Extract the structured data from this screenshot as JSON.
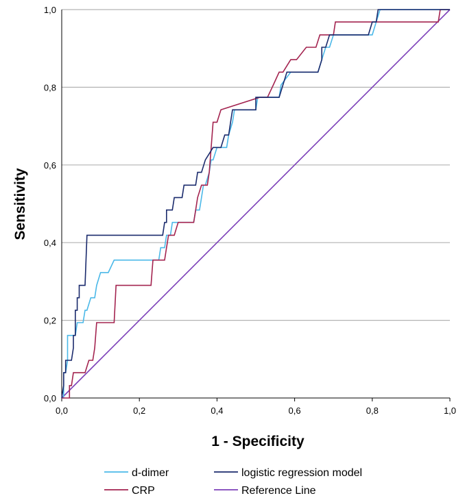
{
  "chart_data": {
    "type": "line",
    "title": "",
    "xlabel": "1 - Specificity",
    "ylabel": "Sensitivity",
    "xlim": [
      0,
      1
    ],
    "ylim": [
      0,
      1
    ],
    "x_ticks": [
      "0,0",
      "0,2",
      "0,4",
      "0,6",
      "0,8",
      "1,0"
    ],
    "y_ticks": [
      "0,0",
      "0,2",
      "0,4",
      "0,6",
      "0,8",
      "1,0"
    ],
    "grid": "horizontal",
    "legend_position": "bottom",
    "series": [
      {
        "name": "d-dimer",
        "color": "#4ab8e8",
        "points": [
          [
            0,
            0
          ],
          [
            0.005,
            0
          ],
          [
            0.005,
            0.065
          ],
          [
            0.01,
            0.065
          ],
          [
            0.015,
            0.097
          ],
          [
            0.015,
            0.161
          ],
          [
            0.025,
            0.161
          ],
          [
            0.03,
            0.161
          ],
          [
            0.035,
            0.161
          ],
          [
            0.04,
            0.194
          ],
          [
            0.055,
            0.194
          ],
          [
            0.06,
            0.226
          ],
          [
            0.065,
            0.226
          ],
          [
            0.075,
            0.258
          ],
          [
            0.085,
            0.258
          ],
          [
            0.09,
            0.29
          ],
          [
            0.1,
            0.323
          ],
          [
            0.12,
            0.323
          ],
          [
            0.135,
            0.355
          ],
          [
            0.25,
            0.355
          ],
          [
            0.255,
            0.387
          ],
          [
            0.265,
            0.387
          ],
          [
            0.27,
            0.419
          ],
          [
            0.28,
            0.419
          ],
          [
            0.285,
            0.452
          ],
          [
            0.34,
            0.452
          ],
          [
            0.345,
            0.484
          ],
          [
            0.355,
            0.484
          ],
          [
            0.36,
            0.516
          ],
          [
            0.365,
            0.548
          ],
          [
            0.37,
            0.548
          ],
          [
            0.38,
            0.581
          ],
          [
            0.385,
            0.613
          ],
          [
            0.39,
            0.613
          ],
          [
            0.4,
            0.645
          ],
          [
            0.425,
            0.645
          ],
          [
            0.43,
            0.677
          ],
          [
            0.44,
            0.71
          ],
          [
            0.445,
            0.742
          ],
          [
            0.5,
            0.742
          ],
          [
            0.505,
            0.774
          ],
          [
            0.56,
            0.774
          ],
          [
            0.565,
            0.806
          ],
          [
            0.59,
            0.839
          ],
          [
            0.66,
            0.839
          ],
          [
            0.67,
            0.871
          ],
          [
            0.68,
            0.903
          ],
          [
            0.69,
            0.903
          ],
          [
            0.7,
            0.935
          ],
          [
            0.8,
            0.935
          ],
          [
            0.81,
            0.968
          ],
          [
            0.82,
            1
          ],
          [
            1,
            1
          ]
        ]
      },
      {
        "name": "CRP",
        "color": "#a3234f",
        "points": [
          [
            0,
            0
          ],
          [
            0.02,
            0
          ],
          [
            0.02,
            0.032
          ],
          [
            0.025,
            0.032
          ],
          [
            0.03,
            0.065
          ],
          [
            0.06,
            0.065
          ],
          [
            0.07,
            0.097
          ],
          [
            0.08,
            0.097
          ],
          [
            0.085,
            0.129
          ],
          [
            0.09,
            0.194
          ],
          [
            0.135,
            0.194
          ],
          [
            0.14,
            0.29
          ],
          [
            0.23,
            0.29
          ],
          [
            0.235,
            0.355
          ],
          [
            0.265,
            0.355
          ],
          [
            0.27,
            0.387
          ],
          [
            0.275,
            0.419
          ],
          [
            0.29,
            0.419
          ],
          [
            0.3,
            0.452
          ],
          [
            0.34,
            0.452
          ],
          [
            0.345,
            0.484
          ],
          [
            0.35,
            0.516
          ],
          [
            0.36,
            0.548
          ],
          [
            0.375,
            0.548
          ],
          [
            0.38,
            0.581
          ],
          [
            0.385,
            0.645
          ],
          [
            0.39,
            0.71
          ],
          [
            0.4,
            0.71
          ],
          [
            0.41,
            0.742
          ],
          [
            0.51,
            0.774
          ],
          [
            0.53,
            0.774
          ],
          [
            0.545,
            0.806
          ],
          [
            0.56,
            0.839
          ],
          [
            0.57,
            0.839
          ],
          [
            0.59,
            0.871
          ],
          [
            0.605,
            0.871
          ],
          [
            0.63,
            0.903
          ],
          [
            0.655,
            0.903
          ],
          [
            0.665,
            0.935
          ],
          [
            0.7,
            0.935
          ],
          [
            0.705,
            0.968
          ],
          [
            0.97,
            0.968
          ],
          [
            0.975,
            1
          ],
          [
            1,
            1
          ]
        ]
      },
      {
        "name": "logistic regression model",
        "color": "#1a2a6c",
        "points": [
          [
            0,
            0
          ],
          [
            0.005,
            0.032
          ],
          [
            0.005,
            0.065
          ],
          [
            0.01,
            0.065
          ],
          [
            0.01,
            0.097
          ],
          [
            0.02,
            0.097
          ],
          [
            0.025,
            0.097
          ],
          [
            0.03,
            0.129
          ],
          [
            0.03,
            0.161
          ],
          [
            0.035,
            0.161
          ],
          [
            0.035,
            0.226
          ],
          [
            0.04,
            0.226
          ],
          [
            0.04,
            0.258
          ],
          [
            0.045,
            0.258
          ],
          [
            0.045,
            0.29
          ],
          [
            0.06,
            0.29
          ],
          [
            0.065,
            0.419
          ],
          [
            0.26,
            0.419
          ],
          [
            0.265,
            0.452
          ],
          [
            0.27,
            0.452
          ],
          [
            0.27,
            0.484
          ],
          [
            0.285,
            0.484
          ],
          [
            0.29,
            0.516
          ],
          [
            0.31,
            0.516
          ],
          [
            0.315,
            0.548
          ],
          [
            0.33,
            0.548
          ],
          [
            0.345,
            0.548
          ],
          [
            0.35,
            0.581
          ],
          [
            0.36,
            0.581
          ],
          [
            0.37,
            0.613
          ],
          [
            0.39,
            0.645
          ],
          [
            0.41,
            0.645
          ],
          [
            0.42,
            0.677
          ],
          [
            0.43,
            0.677
          ],
          [
            0.435,
            0.71
          ],
          [
            0.44,
            0.742
          ],
          [
            0.5,
            0.742
          ],
          [
            0.5,
            0.774
          ],
          [
            0.56,
            0.774
          ],
          [
            0.58,
            0.839
          ],
          [
            0.66,
            0.839
          ],
          [
            0.67,
            0.871
          ],
          [
            0.67,
            0.903
          ],
          [
            0.68,
            0.903
          ],
          [
            0.69,
            0.935
          ],
          [
            0.79,
            0.935
          ],
          [
            0.8,
            0.968
          ],
          [
            0.81,
            0.968
          ],
          [
            0.815,
            1
          ],
          [
            1,
            1
          ]
        ]
      },
      {
        "name": "Reference Line",
        "color": "#7b3fb8",
        "points": [
          [
            0,
            0
          ],
          [
            1,
            1
          ]
        ]
      }
    ],
    "legend_order": [
      "d-dimer",
      "logistic regression model",
      "CRP",
      "Reference Line"
    ]
  }
}
